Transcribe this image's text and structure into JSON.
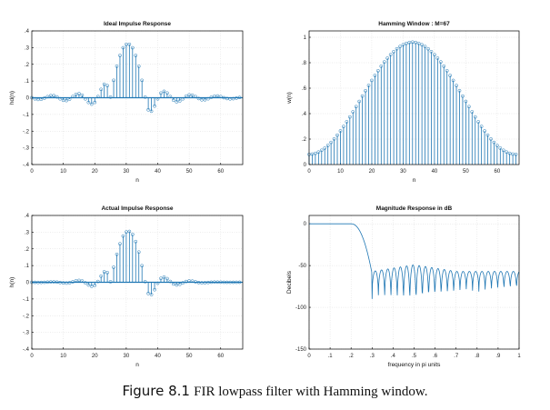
{
  "caption": {
    "label": "Figure 8.1",
    "text": "FIR lowpass filter with Hamming window."
  },
  "colors": {
    "series": "#1f77b4",
    "axis": "#000000",
    "grid": "#d9d9d9"
  },
  "chart_data": [
    {
      "type": "stem",
      "title": "Ideal Impulse Response",
      "xlabel": "n",
      "ylabel": "hd(n)",
      "xlim": [
        0,
        67
      ],
      "ylim": [
        -0.4,
        0.4
      ],
      "xticks": [
        0,
        10,
        20,
        30,
        40,
        50,
        60
      ],
      "yticks": [
        -0.4,
        -0.3,
        -0.2,
        -0.1,
        0,
        0.1,
        0.2,
        0.3,
        0.4
      ],
      "series": [
        {
          "x": [
            0,
            1,
            2,
            3,
            4,
            5,
            6,
            7,
            8,
            9,
            10,
            11,
            12,
            13,
            14,
            15,
            16,
            17,
            18,
            19,
            20,
            21,
            22,
            23,
            24,
            25,
            26,
            27,
            28,
            29,
            30,
            31,
            32,
            33,
            34,
            35,
            36,
            37,
            38,
            39,
            40,
            41,
            42,
            43,
            44,
            45,
            46,
            47,
            48,
            49,
            50,
            51,
            52,
            53,
            54,
            55,
            56,
            57,
            58,
            59,
            60,
            61,
            62,
            63,
            64,
            65,
            66
          ],
          "values": [
            0,
            -0.0066,
            -0.0103,
            -0.0088,
            -0.0024,
            0.0062,
            0.0123,
            0.0123,
            0.0049,
            -0.0064,
            -0.0152,
            -0.0169,
            -0.0085,
            0.0066,
            0.0197,
            0.0244,
            0.0147,
            -0.0067,
            -0.0281,
            -0.0385,
            -0.0278,
            0.0069,
            0.05,
            0.0808,
            0.0722,
            0.0038,
            0.1041,
            0.1886,
            0.2534,
            0.2991,
            0.3198,
            0.3198,
            0.2991,
            0.2534,
            0.1886,
            0.1041,
            0.0038,
            -0.0722,
            -0.0808,
            -0.05,
            -0.0069,
            0.0278,
            0.0385,
            0.0281,
            0.0067,
            -0.0147,
            -0.0244,
            -0.0197,
            -0.0066,
            0.0085,
            0.0169,
            0.0152,
            0.0064,
            -0.0049,
            -0.0123,
            -0.0123,
            -0.0062,
            0.0024,
            0.0088,
            0.0103,
            0.0066,
            0,
            -0.0049,
            -0.0069,
            -0.0057,
            -0.0021,
            0.0015
          ]
        }
      ]
    },
    {
      "type": "stem",
      "title": "Hamming Window : M=67",
      "xlabel": "n",
      "ylabel": "w(n)",
      "xlim": [
        0,
        67
      ],
      "ylim": [
        0,
        1.05
      ],
      "xticks": [
        0,
        10,
        20,
        30,
        40,
        50,
        60
      ],
      "yticks": [
        0,
        0.2,
        0.4,
        0.6,
        0.8,
        1
      ],
      "series": [
        {
          "x": [
            0,
            1,
            2,
            3,
            4,
            5,
            6,
            7,
            8,
            9,
            10,
            11,
            12,
            13,
            14,
            15,
            16,
            17,
            18,
            19,
            20,
            21,
            22,
            23,
            24,
            25,
            26,
            27,
            28,
            29,
            30,
            31,
            32,
            33,
            34,
            35,
            36,
            37,
            38,
            39,
            40,
            41,
            42,
            43,
            44,
            45,
            46,
            47,
            48,
            49,
            50,
            51,
            52,
            53,
            54,
            55,
            56,
            57,
            58,
            59,
            60,
            61,
            62,
            63,
            64,
            65,
            66
          ],
          "values": [
            0.08,
            0.082,
            0.088,
            0.098,
            0.112,
            0.129,
            0.15,
            0.174,
            0.201,
            0.231,
            0.264,
            0.299,
            0.336,
            0.374,
            0.414,
            0.455,
            0.496,
            0.538,
            0.58,
            0.621,
            0.661,
            0.7,
            0.737,
            0.773,
            0.806,
            0.836,
            0.863,
            0.887,
            0.909,
            0.927,
            0.941,
            0.952,
            0.959,
            0.962,
            0.959,
            0.952,
            0.941,
            0.927,
            0.909,
            0.887,
            0.863,
            0.836,
            0.806,
            0.773,
            0.737,
            0.7,
            0.661,
            0.621,
            0.58,
            0.538,
            0.496,
            0.455,
            0.414,
            0.374,
            0.336,
            0.299,
            0.264,
            0.231,
            0.201,
            0.174,
            0.15,
            0.129,
            0.112,
            0.098,
            0.088,
            0.082,
            0.08
          ]
        }
      ]
    },
    {
      "type": "stem",
      "title": "Actual Impulse Response",
      "xlabel": "n",
      "ylabel": "h(n)",
      "xlim": [
        0,
        67
      ],
      "ylim": [
        -0.4,
        0.4
      ],
      "xticks": [
        0,
        10,
        20,
        30,
        40,
        50,
        60
      ],
      "yticks": [
        -0.4,
        -0.3,
        -0.2,
        -0.1,
        0,
        0.1,
        0.2,
        0.3,
        0.4
      ],
      "series": [
        {
          "x": [
            0,
            1,
            2,
            3,
            4,
            5,
            6,
            7,
            8,
            9,
            10,
            11,
            12,
            13,
            14,
            15,
            16,
            17,
            18,
            19,
            20,
            21,
            22,
            23,
            24,
            25,
            26,
            27,
            28,
            29,
            30,
            31,
            32,
            33,
            34,
            35,
            36,
            37,
            38,
            39,
            40,
            41,
            42,
            43,
            44,
            45,
            46,
            47,
            48,
            49,
            50,
            51,
            52,
            53,
            54,
            55,
            56,
            57,
            58,
            59,
            60,
            61,
            62,
            63,
            64,
            65,
            66
          ],
          "values": [
            0,
            -0.0005,
            -0.0009,
            -0.0009,
            -0.0003,
            0.0008,
            0.0018,
            0.0021,
            0.001,
            -0.0015,
            -0.004,
            -0.0051,
            -0.0029,
            0.0025,
            0.0082,
            0.0111,
            0.0073,
            -0.0036,
            -0.0163,
            -0.0239,
            -0.0184,
            0.0048,
            0.0369,
            0.0625,
            0.0582,
            0.0032,
            0.0898,
            0.1673,
            0.2304,
            0.2768,
            0.301,
            0.3045,
            0.2868,
            0.2437,
            0.1809,
            0.0991,
            0.0036,
            -0.0669,
            -0.0734,
            -0.0444,
            -0.006,
            0.0232,
            0.031,
            0.0217,
            0.0049,
            -0.0103,
            -0.0161,
            -0.0122,
            -0.0038,
            0.0046,
            0.0084,
            0.0069,
            0.0026,
            -0.0017,
            -0.0036,
            -0.003,
            -0.0012,
            0.0004,
            0.0011,
            0.001,
            0.0006,
            0,
            -0.0002,
            -0.0003,
            -0.0002,
            -0.0001,
            0.0001
          ]
        }
      ]
    },
    {
      "type": "line",
      "title": "Magnitude Response in dB",
      "xlabel": "frequency in pi units",
      "ylabel": "Decibels",
      "xlim": [
        0,
        1
      ],
      "ylim": [
        -150,
        10
      ],
      "xticks": [
        0,
        0.1,
        0.2,
        0.3,
        0.4,
        0.5,
        0.6,
        0.7,
        0.8,
        0.9,
        1
      ],
      "yticks": [
        -150,
        -100,
        -50,
        0
      ],
      "passband": {
        "end": 0.2,
        "stopband_start": 0.3,
        "level": 0
      },
      "sidelobes": {
        "edge_peak": -57,
        "mid_floor": -60,
        "edge_floor": -68,
        "null_depth": [
          -85,
          -110
        ],
        "null_spacing": 0.0299
      },
      "series": [
        {
          "name": "",
          "values": []
        }
      ]
    }
  ]
}
